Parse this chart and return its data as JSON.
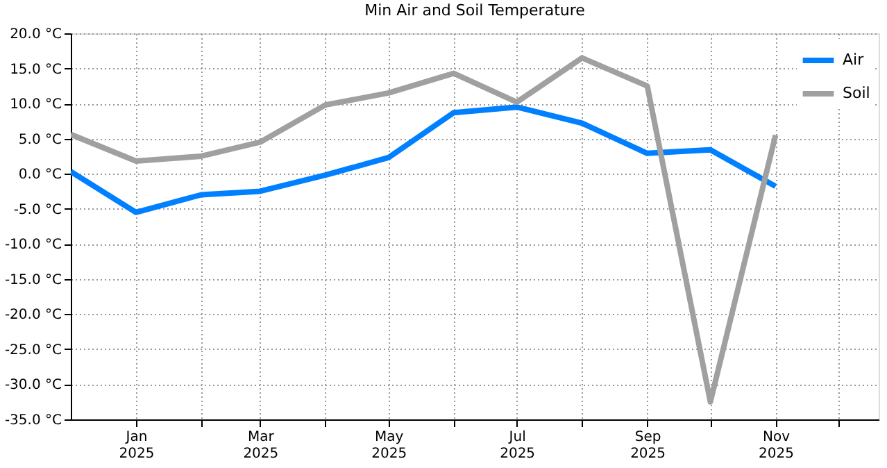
{
  "chart_data": {
    "type": "line",
    "title": "Min Air and Soil Temperature",
    "x": [
      "2024-12-01",
      "2025-01-01",
      "2025-02-01",
      "2025-03-01",
      "2025-04-01",
      "2025-05-01",
      "2025-06-01",
      "2025-07-01",
      "2025-08-01",
      "2025-09-01",
      "2025-10-01",
      "2025-11-01"
    ],
    "series": [
      {
        "name": "Air",
        "color": "#0080ff",
        "values": [
          0.3,
          -5.5,
          -3.0,
          -2.5,
          -0.2,
          2.3,
          8.7,
          9.5,
          7.2,
          2.9,
          3.4,
          -1.8
        ]
      },
      {
        "name": "Soil",
        "color": "#a0a0a0",
        "values": [
          5.6,
          1.8,
          2.5,
          4.5,
          9.8,
          11.5,
          14.3,
          10.2,
          16.5,
          12.5,
          -32.5,
          5.5
        ]
      }
    ],
    "xlim": [
      "2024-12-01",
      "2025-12-20"
    ],
    "xticks": [
      {
        "value": "2025-01-01",
        "label": "Jan\n2025"
      },
      {
        "value": "2025-02-01",
        "label": null
      },
      {
        "value": "2025-03-01",
        "label": "Mar\n2025"
      },
      {
        "value": "2025-04-01",
        "label": null
      },
      {
        "value": "2025-05-01",
        "label": "May\n2025"
      },
      {
        "value": "2025-06-01",
        "label": null
      },
      {
        "value": "2025-07-01",
        "label": "Jul\n2025"
      },
      {
        "value": "2025-08-01",
        "label": null
      },
      {
        "value": "2025-09-01",
        "label": "Sep\n2025"
      },
      {
        "value": "2025-10-01",
        "label": null
      },
      {
        "value": "2025-11-01",
        "label": "Nov\n2025"
      },
      {
        "value": "2025-12-01",
        "label": null
      }
    ],
    "ylim": [
      -35,
      20
    ],
    "yticks": [
      {
        "value": 20,
        "label": "20.0 °C"
      },
      {
        "value": 15,
        "label": "15.0 °C"
      },
      {
        "value": 10,
        "label": "10.0 °C"
      },
      {
        "value": 5,
        "label": "5.0 °C"
      },
      {
        "value": 0,
        "label": "0.0 °C"
      },
      {
        "value": -5,
        "label": "-5.0 °C"
      },
      {
        "value": -10,
        "label": "-10.0 °C"
      },
      {
        "value": -15,
        "label": "-15.0 °C"
      },
      {
        "value": -20,
        "label": "-20.0 °C"
      },
      {
        "value": -25,
        "label": "-25.0 °C"
      },
      {
        "value": -30,
        "label": "-30.0 °C"
      },
      {
        "value": -35,
        "label": "-35.0 °C"
      }
    ],
    "grid": true,
    "legend": "top right",
    "marker": "none",
    "line_style": "solid"
  }
}
